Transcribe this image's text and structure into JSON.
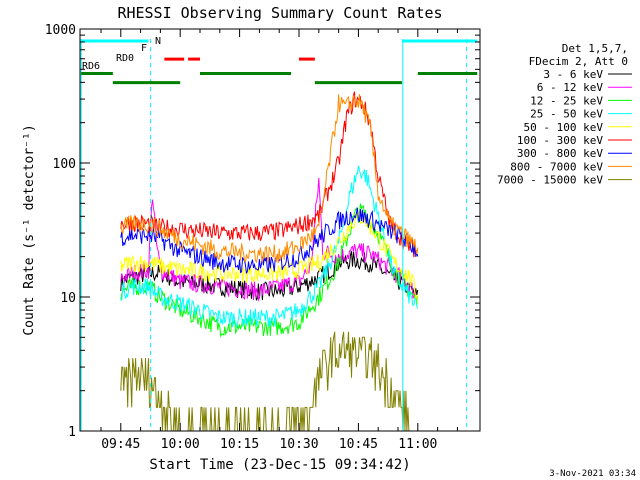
{
  "chart_data": {
    "type": "line",
    "title": "RHESSI Observing Summary Count Rates",
    "xlabel": "Start Time (23-Dec-15 09:34:42)",
    "ylabel": "Count Rate (s⁻¹ detector⁻¹)",
    "y_scale": "log",
    "ylim": [
      1,
      1000
    ],
    "xlim_minutes": [
      34.7,
      135.7
    ],
    "x_ticks": [
      {
        "label": "09:45",
        "min": 45
      },
      {
        "label": "10:00",
        "min": 60
      },
      {
        "label": "10:15",
        "min": 75
      },
      {
        "label": "10:30",
        "min": 90
      },
      {
        "label": "10:45",
        "min": 105
      },
      {
        "label": "11:00",
        "min": 120
      }
    ],
    "y_ticks": [
      {
        "label": "1",
        "value": 1
      },
      {
        "label": "10",
        "value": 10
      },
      {
        "label": "100",
        "value": 100
      },
      {
        "label": "1000",
        "value": 1000
      }
    ],
    "legend_header": [
      "Det 1,5,7,",
      "FDecim 2, Att 0"
    ],
    "legend_position": "right",
    "series": [
      {
        "name": "3 - 6 keV",
        "color": "#000000",
        "points": [
          [
            45,
            13
          ],
          [
            48,
            14
          ],
          [
            52,
            15
          ],
          [
            55,
            15
          ],
          [
            60,
            13
          ],
          [
            70,
            12
          ],
          [
            80,
            11
          ],
          [
            85,
            11
          ],
          [
            90,
            12
          ],
          [
            95,
            14
          ],
          [
            98,
            16
          ],
          [
            100,
            18
          ],
          [
            104,
            19
          ],
          [
            108,
            18
          ],
          [
            112,
            15
          ],
          [
            117,
            12
          ],
          [
            120,
            10
          ]
        ]
      },
      {
        "name": "6 - 12 keV",
        "color": "#ff00ff",
        "points": [
          [
            45,
            14
          ],
          [
            48,
            15
          ],
          [
            52,
            16
          ],
          [
            53,
            60
          ],
          [
            54,
            25
          ],
          [
            55,
            16
          ],
          [
            60,
            13
          ],
          [
            70,
            12
          ],
          [
            80,
            11
          ],
          [
            85,
            12
          ],
          [
            90,
            13
          ],
          [
            93,
            17
          ],
          [
            95,
            75
          ],
          [
            96,
            22
          ],
          [
            100,
            20
          ],
          [
            104,
            22
          ],
          [
            108,
            21
          ],
          [
            112,
            17
          ],
          [
            117,
            13
          ],
          [
            120,
            10
          ]
        ]
      },
      {
        "name": "12 - 25 keV",
        "color": "#00ff00",
        "points": [
          [
            45,
            11
          ],
          [
            48,
            12
          ],
          [
            52,
            12
          ],
          [
            55,
            10
          ],
          [
            60,
            8
          ],
          [
            70,
            6
          ],
          [
            80,
            6
          ],
          [
            85,
            6
          ],
          [
            90,
            6.5
          ],
          [
            95,
            10
          ],
          [
            100,
            18
          ],
          [
            104,
            40
          ],
          [
            106,
            44
          ],
          [
            110,
            30
          ],
          [
            114,
            16
          ],
          [
            118,
            11
          ],
          [
            120,
            9
          ]
        ]
      },
      {
        "name": "25 - 50 keV",
        "color": "#00ffff",
        "points": [
          [
            45,
            11
          ],
          [
            48,
            12
          ],
          [
            52,
            12
          ],
          [
            55,
            10
          ],
          [
            60,
            9
          ],
          [
            70,
            7
          ],
          [
            80,
            7
          ],
          [
            85,
            7
          ],
          [
            90,
            8
          ],
          [
            95,
            12
          ],
          [
            100,
            25
          ],
          [
            103,
            60
          ],
          [
            105,
            90
          ],
          [
            107,
            80
          ],
          [
            110,
            40
          ],
          [
            114,
            15
          ],
          [
            118,
            10
          ],
          [
            120,
            8
          ]
        ]
      },
      {
        "name": "50 - 100 keV",
        "color": "#ffff00",
        "points": [
          [
            45,
            17
          ],
          [
            48,
            18
          ],
          [
            52,
            18
          ],
          [
            55,
            17
          ],
          [
            60,
            16
          ],
          [
            70,
            15
          ],
          [
            80,
            15
          ],
          [
            85,
            15
          ],
          [
            90,
            16
          ],
          [
            95,
            18
          ],
          [
            100,
            26
          ],
          [
            104,
            38
          ],
          [
            106,
            40
          ],
          [
            110,
            28
          ],
          [
            114,
            18
          ],
          [
            118,
            14
          ],
          [
            120,
            10
          ]
        ]
      },
      {
        "name": "100 - 300 keV",
        "color": "#ff0000",
        "points": [
          [
            45,
            35
          ],
          [
            48,
            36
          ],
          [
            52,
            35
          ],
          [
            55,
            33
          ],
          [
            60,
            32
          ],
          [
            70,
            30
          ],
          [
            80,
            30
          ],
          [
            85,
            31
          ],
          [
            90,
            34
          ],
          [
            95,
            40
          ],
          [
            100,
            100
          ],
          [
            102,
            220
          ],
          [
            104,
            300
          ],
          [
            106,
            280
          ],
          [
            108,
            200
          ],
          [
            110,
            80
          ],
          [
            113,
            35
          ],
          [
            117,
            25
          ],
          [
            120,
            22
          ]
        ]
      },
      {
        "name": "300 - 800 keV",
        "color": "#0000ff",
        "points": [
          [
            45,
            28
          ],
          [
            48,
            29
          ],
          [
            52,
            29
          ],
          [
            55,
            27
          ],
          [
            60,
            22
          ],
          [
            70,
            18
          ],
          [
            80,
            17
          ],
          [
            85,
            18
          ],
          [
            90,
            20
          ],
          [
            95,
            27
          ],
          [
            100,
            37
          ],
          [
            104,
            42
          ],
          [
            108,
            38
          ],
          [
            112,
            32
          ],
          [
            116,
            28
          ],
          [
            120,
            22
          ]
        ]
      },
      {
        "name": "800 - 7000 keV",
        "color": "#ff8c00",
        "points": [
          [
            45,
            33
          ],
          [
            48,
            35
          ],
          [
            52,
            35
          ],
          [
            55,
            32
          ],
          [
            60,
            27
          ],
          [
            70,
            22
          ],
          [
            80,
            21
          ],
          [
            85,
            21
          ],
          [
            90,
            24
          ],
          [
            95,
            32
          ],
          [
            100,
            280
          ],
          [
            102,
            260
          ],
          [
            104,
            300
          ],
          [
            106,
            270
          ],
          [
            108,
            180
          ],
          [
            110,
            60
          ],
          [
            113,
            35
          ],
          [
            117,
            28
          ],
          [
            120,
            23
          ]
        ]
      },
      {
        "name": "7000 - 15000 keV",
        "color": "#808000",
        "points": [
          [
            45,
            2
          ],
          [
            48,
            2.6
          ],
          [
            51,
            2.4
          ],
          [
            53,
            2.2
          ],
          [
            55,
            1.7
          ],
          [
            57,
            1.3
          ],
          [
            59,
            1.1
          ],
          [
            90,
            1.1
          ],
          [
            92,
            1.3
          ],
          [
            94,
            2
          ],
          [
            96,
            2.8
          ],
          [
            98,
            3.6
          ],
          [
            100,
            3.9
          ],
          [
            102,
            4
          ],
          [
            104,
            3.8
          ],
          [
            106,
            3.6
          ],
          [
            108,
            3.3
          ],
          [
            110,
            3
          ],
          [
            112,
            2.5
          ],
          [
            114,
            1.8
          ],
          [
            116,
            1.4
          ],
          [
            118,
            1.1
          ]
        ]
      }
    ],
    "flag_bars": [
      {
        "label": "N",
        "color": "#00ffff",
        "y": 1.0,
        "segments": [
          [
            35,
            52
          ],
          [
            116,
            135
          ]
        ]
      },
      {
        "label": "F",
        "color": "#ff0000",
        "y": 0.95,
        "segments": [
          [
            56,
            61
          ],
          [
            62,
            65
          ],
          [
            90,
            94
          ]
        ]
      },
      {
        "label": "RD0",
        "color": "#008000",
        "y": 0.91,
        "segments": [
          [
            35,
            43
          ],
          [
            65,
            88
          ],
          [
            120,
            135
          ]
        ]
      },
      {
        "label": "RD6",
        "color": "#008000",
        "y": 0.885,
        "segments": [
          [
            43,
            60
          ],
          [
            94,
            116
          ]
        ]
      }
    ],
    "vlines": [
      {
        "min": 35,
        "color": "#00ffff",
        "style": "solid"
      },
      {
        "min": 52.5,
        "color": "#00ffff",
        "style": "dashed"
      },
      {
        "min": 116.2,
        "color": "#00ffff",
        "style": "solid"
      },
      {
        "min": 132.3,
        "color": "#00ffff",
        "style": "dashed"
      }
    ],
    "grid": false
  },
  "footer_stamp": "3-Nov-2021 03:34"
}
